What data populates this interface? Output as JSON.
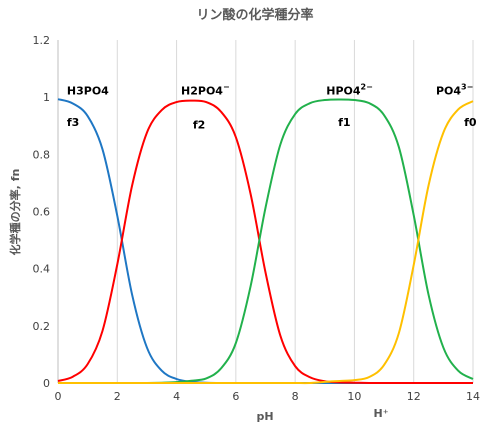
{
  "chart_data": {
    "type": "line",
    "title": "リン酸の化学種分率",
    "xlabel": "pH",
    "ylabel": "化学種の分率, fn",
    "extra_axis_label": "H⁺",
    "xlim": [
      0,
      14
    ],
    "ylim": [
      0,
      1.2
    ],
    "x_ticks": [
      "0",
      "2",
      "4",
      "6",
      "8",
      "10",
      "12",
      "14"
    ],
    "y_ticks": [
      "0",
      "0.2",
      "0.4",
      "0.6",
      "0.8",
      "1",
      "1.2"
    ],
    "grid": "vertical",
    "pKa": [
      2.15,
      7.2,
      12.35
    ],
    "x": [
      0,
      0.5,
      1,
      1.5,
      2,
      2.5,
      3,
      3.5,
      4,
      4.5,
      5,
      5.5,
      6,
      6.5,
      7,
      7.5,
      8,
      8.5,
      9,
      9.5,
      10,
      10.5,
      11,
      11.5,
      12,
      12.5,
      13,
      13.5,
      14
    ],
    "series": [
      {
        "color": "#1f77c4",
        "values": [
          0.993,
          0.978,
          0.934,
          0.818,
          0.585,
          0.309,
          0.124,
          0.043,
          0.014,
          0.004,
          0.001,
          0,
          0,
          0,
          0,
          0,
          0,
          0,
          0,
          0,
          0,
          0,
          0,
          0,
          0,
          0,
          0,
          0,
          0
        ]
      },
      {
        "color": "#ff0000",
        "values": [
          0.007,
          0.022,
          0.066,
          0.182,
          0.415,
          0.691,
          0.876,
          0.955,
          0.983,
          0.988,
          0.983,
          0.949,
          0.86,
          0.66,
          0.387,
          0.166,
          0.059,
          0.02,
          0.006,
          0.002,
          0.001,
          0,
          0,
          0,
          0,
          0,
          0,
          0,
          0
        ]
      },
      {
        "color": "#22b14c",
        "values": [
          0,
          0,
          0,
          0,
          0,
          0,
          0,
          0.001,
          0.003,
          0.008,
          0.016,
          0.051,
          0.14,
          0.34,
          0.613,
          0.834,
          0.941,
          0.979,
          0.99,
          0.992,
          0.99,
          0.979,
          0.937,
          0.825,
          0.587,
          0.309,
          0.124,
          0.043,
          0.014
        ]
      },
      {
        "color": "#ffc000",
        "values": [
          0,
          0,
          0,
          0,
          0,
          0,
          0,
          0,
          0,
          0,
          0,
          0,
          0,
          0,
          0,
          0,
          0,
          0,
          0.004,
          0.007,
          0.01,
          0.021,
          0.063,
          0.175,
          0.413,
          0.691,
          0.876,
          0.957,
          0.986
        ]
      }
    ],
    "annotations": [
      {
        "text": "H3PO4",
        "x": 0.3,
        "y": 1.01
      },
      {
        "text": "f3",
        "x": 0.3,
        "y": 0.9
      },
      {
        "text": "H2PO4",
        "sup": "−",
        "x": 4.15,
        "y": 1.01
      },
      {
        "text": "f2",
        "x": 4.55,
        "y": 0.89
      },
      {
        "text": "HPO4",
        "sup": "2−",
        "x": 9.05,
        "y": 1.01
      },
      {
        "text": "f1",
        "x": 9.45,
        "y": 0.9
      },
      {
        "text": "PO4",
        "sup": "3−",
        "x": 12.75,
        "y": 1.01
      },
      {
        "text": "f0",
        "x": 13.7,
        "y": 0.9
      }
    ]
  }
}
